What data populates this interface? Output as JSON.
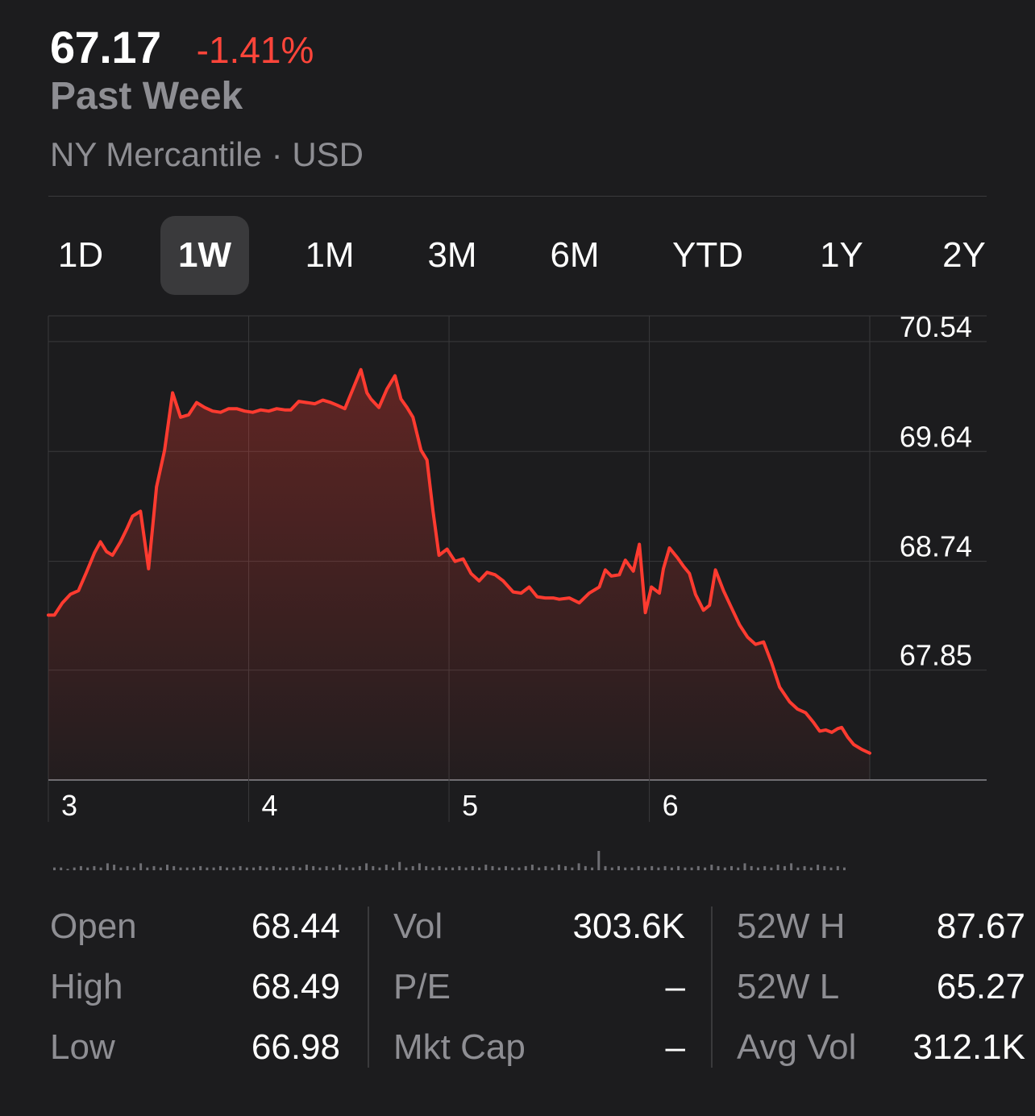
{
  "header": {
    "price": "67.17",
    "change": "-1.41%",
    "period": "Past Week",
    "exchange": "NY Mercantile · USD"
  },
  "colors": {
    "background": "#1c1c1e",
    "line": "#ff3b30",
    "negative": "#ff453a",
    "muted": "#8e8e93",
    "grid": "#3a3a3c"
  },
  "tabs": [
    {
      "label": "1D",
      "active": false
    },
    {
      "label": "1W",
      "active": true
    },
    {
      "label": "1M",
      "active": false
    },
    {
      "label": "3M",
      "active": false
    },
    {
      "label": "6M",
      "active": false
    },
    {
      "label": "YTD",
      "active": false
    },
    {
      "label": "1Y",
      "active": false
    },
    {
      "label": "2Y",
      "active": false
    }
  ],
  "chart_data": {
    "type": "area",
    "x_ticks": [
      "3",
      "4",
      "5",
      "6"
    ],
    "y_ticks": [
      "70.54",
      "69.64",
      "68.74",
      "67.85"
    ],
    "ylim": [
      66.95,
      70.75
    ],
    "x_range": [
      0,
      4.1
    ],
    "grid": true,
    "series": [
      {
        "values": [
          [
            0.0,
            68.3
          ],
          [
            0.03,
            68.3
          ],
          [
            0.07,
            68.4
          ],
          [
            0.11,
            68.47
          ],
          [
            0.15,
            68.5
          ],
          [
            0.19,
            68.65
          ],
          [
            0.23,
            68.81
          ],
          [
            0.26,
            68.9
          ],
          [
            0.29,
            68.82
          ],
          [
            0.32,
            68.79
          ],
          [
            0.36,
            68.9
          ],
          [
            0.39,
            69.0
          ],
          [
            0.42,
            69.11
          ],
          [
            0.46,
            69.15
          ],
          [
            0.5,
            68.68
          ],
          [
            0.54,
            69.35
          ],
          [
            0.58,
            69.65
          ],
          [
            0.62,
            70.12
          ],
          [
            0.66,
            69.92
          ],
          [
            0.7,
            69.94
          ],
          [
            0.74,
            70.04
          ],
          [
            0.78,
            70.0
          ],
          [
            0.82,
            69.97
          ],
          [
            0.86,
            69.96
          ],
          [
            0.9,
            69.99
          ],
          [
            0.94,
            69.99
          ],
          [
            0.98,
            69.97
          ],
          [
            1.02,
            69.96
          ],
          [
            1.06,
            69.98
          ],
          [
            1.1,
            69.97
          ],
          [
            1.14,
            69.99
          ],
          [
            1.18,
            69.98
          ],
          [
            1.21,
            69.98
          ],
          [
            1.25,
            70.05
          ],
          [
            1.29,
            70.04
          ],
          [
            1.33,
            70.03
          ],
          [
            1.37,
            70.06
          ],
          [
            1.41,
            70.04
          ],
          [
            1.44,
            70.02
          ],
          [
            1.48,
            69.99
          ],
          [
            1.52,
            70.15
          ],
          [
            1.56,
            70.31
          ],
          [
            1.59,
            70.12
          ],
          [
            1.61,
            70.07
          ],
          [
            1.65,
            70.0
          ],
          [
            1.69,
            70.15
          ],
          [
            1.73,
            70.26
          ],
          [
            1.76,
            70.07
          ],
          [
            1.79,
            70.0
          ],
          [
            1.82,
            69.92
          ],
          [
            1.86,
            69.65
          ],
          [
            1.89,
            69.57
          ],
          [
            1.92,
            69.15
          ],
          [
            1.95,
            68.79
          ],
          [
            1.99,
            68.84
          ],
          [
            2.03,
            68.74
          ],
          [
            2.07,
            68.76
          ],
          [
            2.11,
            68.64
          ],
          [
            2.15,
            68.58
          ],
          [
            2.19,
            68.65
          ],
          [
            2.23,
            68.63
          ],
          [
            2.27,
            68.58
          ],
          [
            2.32,
            68.49
          ],
          [
            2.36,
            68.48
          ],
          [
            2.4,
            68.53
          ],
          [
            2.44,
            68.45
          ],
          [
            2.48,
            68.44
          ],
          [
            2.52,
            68.44
          ],
          [
            2.55,
            68.43
          ],
          [
            2.6,
            68.44
          ],
          [
            2.65,
            68.4
          ],
          [
            2.7,
            68.48
          ],
          [
            2.75,
            68.53
          ],
          [
            2.78,
            68.67
          ],
          [
            2.81,
            68.62
          ],
          [
            2.85,
            68.63
          ],
          [
            2.88,
            68.75
          ],
          [
            2.92,
            68.66
          ],
          [
            2.95,
            68.88
          ],
          [
            2.98,
            68.32
          ],
          [
            3.01,
            68.53
          ],
          [
            3.05,
            68.48
          ],
          [
            3.07,
            68.68
          ],
          [
            3.1,
            68.85
          ],
          [
            3.14,
            68.77
          ],
          [
            3.17,
            68.7
          ],
          [
            3.2,
            68.64
          ],
          [
            3.23,
            68.47
          ],
          [
            3.27,
            68.34
          ],
          [
            3.3,
            68.38
          ],
          [
            3.33,
            68.67
          ],
          [
            3.37,
            68.5
          ],
          [
            3.41,
            68.36
          ],
          [
            3.45,
            68.22
          ],
          [
            3.49,
            68.12
          ],
          [
            3.53,
            68.06
          ],
          [
            3.57,
            68.08
          ],
          [
            3.61,
            67.91
          ],
          [
            3.65,
            67.71
          ],
          [
            3.7,
            67.59
          ],
          [
            3.74,
            67.53
          ],
          [
            3.78,
            67.5
          ],
          [
            3.82,
            67.42
          ],
          [
            3.85,
            67.35
          ],
          [
            3.88,
            67.36
          ],
          [
            3.91,
            67.34
          ],
          [
            3.94,
            67.37
          ],
          [
            3.96,
            67.38
          ],
          [
            3.99,
            67.3
          ],
          [
            4.02,
            67.24
          ],
          [
            4.06,
            67.2
          ],
          [
            4.1,
            67.17
          ]
        ]
      }
    ],
    "volume": [
      2,
      2,
      1,
      2,
      3,
      2,
      3,
      2,
      5,
      4,
      2,
      3,
      2,
      5,
      2,
      3,
      2,
      4,
      3,
      2,
      2,
      2,
      3,
      2,
      2,
      3,
      2,
      2,
      3,
      2,
      2,
      3,
      2,
      3,
      2,
      2,
      3,
      2,
      4,
      3,
      2,
      3,
      2,
      4,
      2,
      2,
      3,
      5,
      3,
      2,
      4,
      2,
      6,
      2,
      3,
      5,
      3,
      2,
      3,
      2,
      2,
      3,
      2,
      3,
      2,
      4,
      3,
      2,
      3,
      2,
      2,
      3,
      4,
      2,
      3,
      2,
      4,
      3,
      2,
      5,
      3,
      2,
      14,
      3,
      2,
      3,
      2,
      2,
      3,
      2,
      3,
      2,
      3,
      2,
      3,
      2,
      2,
      3,
      2,
      4,
      3,
      2,
      3,
      2,
      5,
      3,
      2,
      3,
      2,
      4,
      3,
      5,
      2,
      3,
      2,
      4,
      3,
      2,
      3,
      2
    ]
  },
  "stats": {
    "col1": [
      {
        "label": "Open",
        "value": "68.44"
      },
      {
        "label": "High",
        "value": "68.49"
      },
      {
        "label": "Low",
        "value": "66.98"
      }
    ],
    "col2": [
      {
        "label": "Vol",
        "value": "303.6K"
      },
      {
        "label": "P/E",
        "value": "–"
      },
      {
        "label": "Mkt Cap",
        "value": "–"
      }
    ],
    "col3": [
      {
        "label": "52W H",
        "value": "87.67"
      },
      {
        "label": "52W L",
        "value": "65.27"
      },
      {
        "label": "Avg Vol",
        "value": "312.1K"
      }
    ]
  }
}
